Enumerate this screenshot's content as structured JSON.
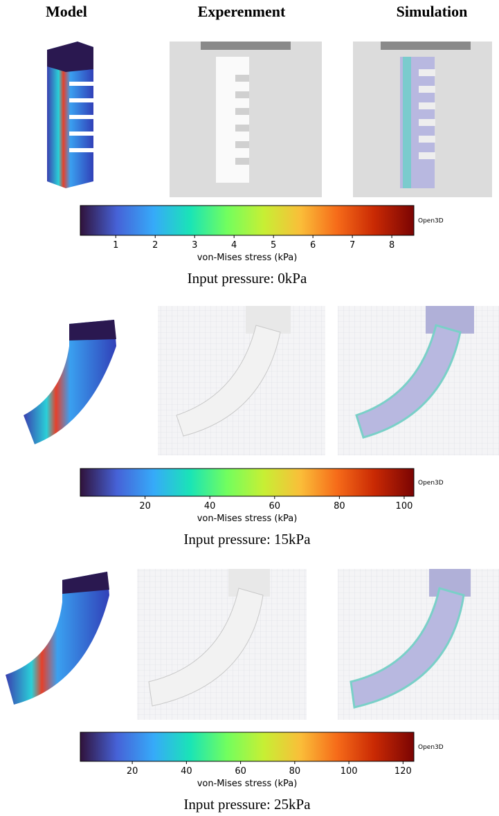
{
  "header": {
    "columns": [
      "Model",
      "Experenment",
      "Simulation"
    ]
  },
  "rows": [
    {
      "colorbar": {
        "range": [
          0.1,
          8.56
        ],
        "ticks": [
          1,
          2,
          3,
          4,
          5,
          6,
          7,
          8
        ],
        "label": "von-Mises stress (kPa)",
        "brand": "Open3D"
      },
      "caption": "Input pressure: 0kPa"
    },
    {
      "colorbar": {
        "range": [
          0,
          103
        ],
        "ticks": [
          20,
          40,
          60,
          80,
          100
        ],
        "label": "von-Mises stress (kPa)",
        "brand": "Open3D"
      },
      "caption": "Input pressure: 15kPa"
    },
    {
      "colorbar": {
        "range": [
          0.8,
          124
        ],
        "ticks": [
          20,
          40,
          60,
          80,
          100,
          120
        ],
        "label": "von-Mises stress (kPa)",
        "brand": "Open3D"
      },
      "caption": "Input pressure: 25kPa"
    }
  ]
}
